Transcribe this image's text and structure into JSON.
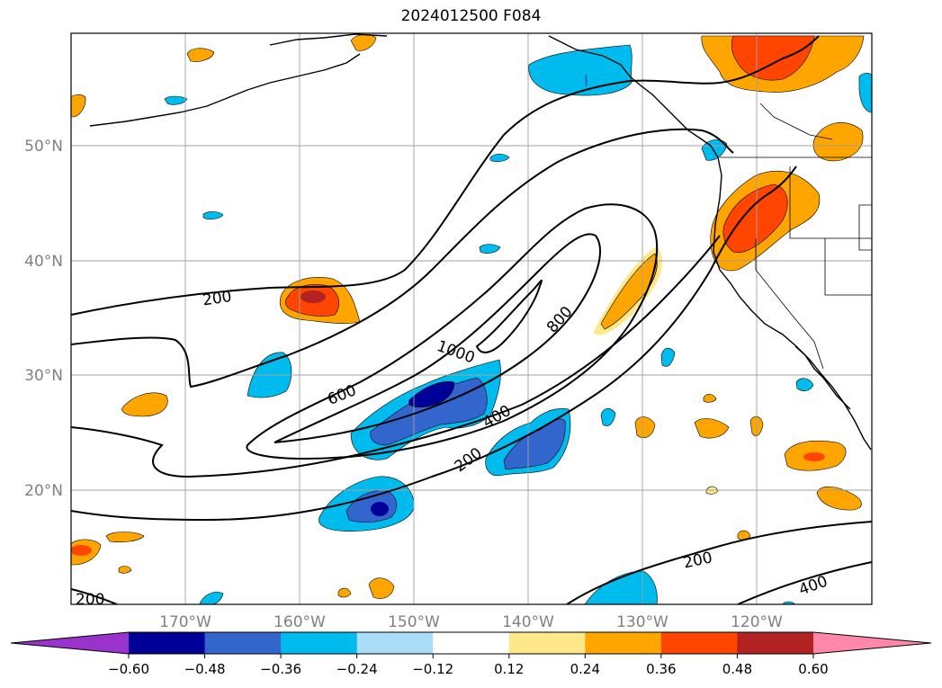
{
  "title": "2024012500 F084",
  "map": {
    "lat_labels": [
      "50°N",
      "40°N",
      "30°N",
      "20°N"
    ],
    "lon_labels": [
      "170°W",
      "160°W",
      "150°W",
      "140°W",
      "130°W",
      "120°W"
    ],
    "contour_labels": [
      {
        "text": "200",
        "angle": -8
      },
      {
        "text": "600",
        "angle": -22
      },
      {
        "text": "1000",
        "angle": 20
      },
      {
        "text": "800",
        "angle": -48
      },
      {
        "text": "400",
        "angle": -30
      },
      {
        "text": "200",
        "angle": -36
      },
      {
        "text": "200",
        "angle": -12
      },
      {
        "text": "400",
        "angle": -20
      },
      {
        "text": "200",
        "angle": 0
      }
    ]
  },
  "colorbar": {
    "ticks": [
      "−0.60",
      "−0.48",
      "−0.36",
      "−0.24",
      "−0.12",
      "0.12",
      "0.24",
      "0.36",
      "0.48",
      "0.60"
    ],
    "colors": [
      "#9933cc",
      "#000099",
      "#3366cc",
      "#00bbee",
      "#aaddf8",
      "#ffffff",
      "#ffe88a",
      "#ffa500",
      "#ff4500",
      "#b22222",
      "#ff88aa"
    ]
  },
  "legend_colors": {
    "accent": "#000000",
    "grid": "#a0a0a0",
    "axis_label": "#808080"
  }
}
